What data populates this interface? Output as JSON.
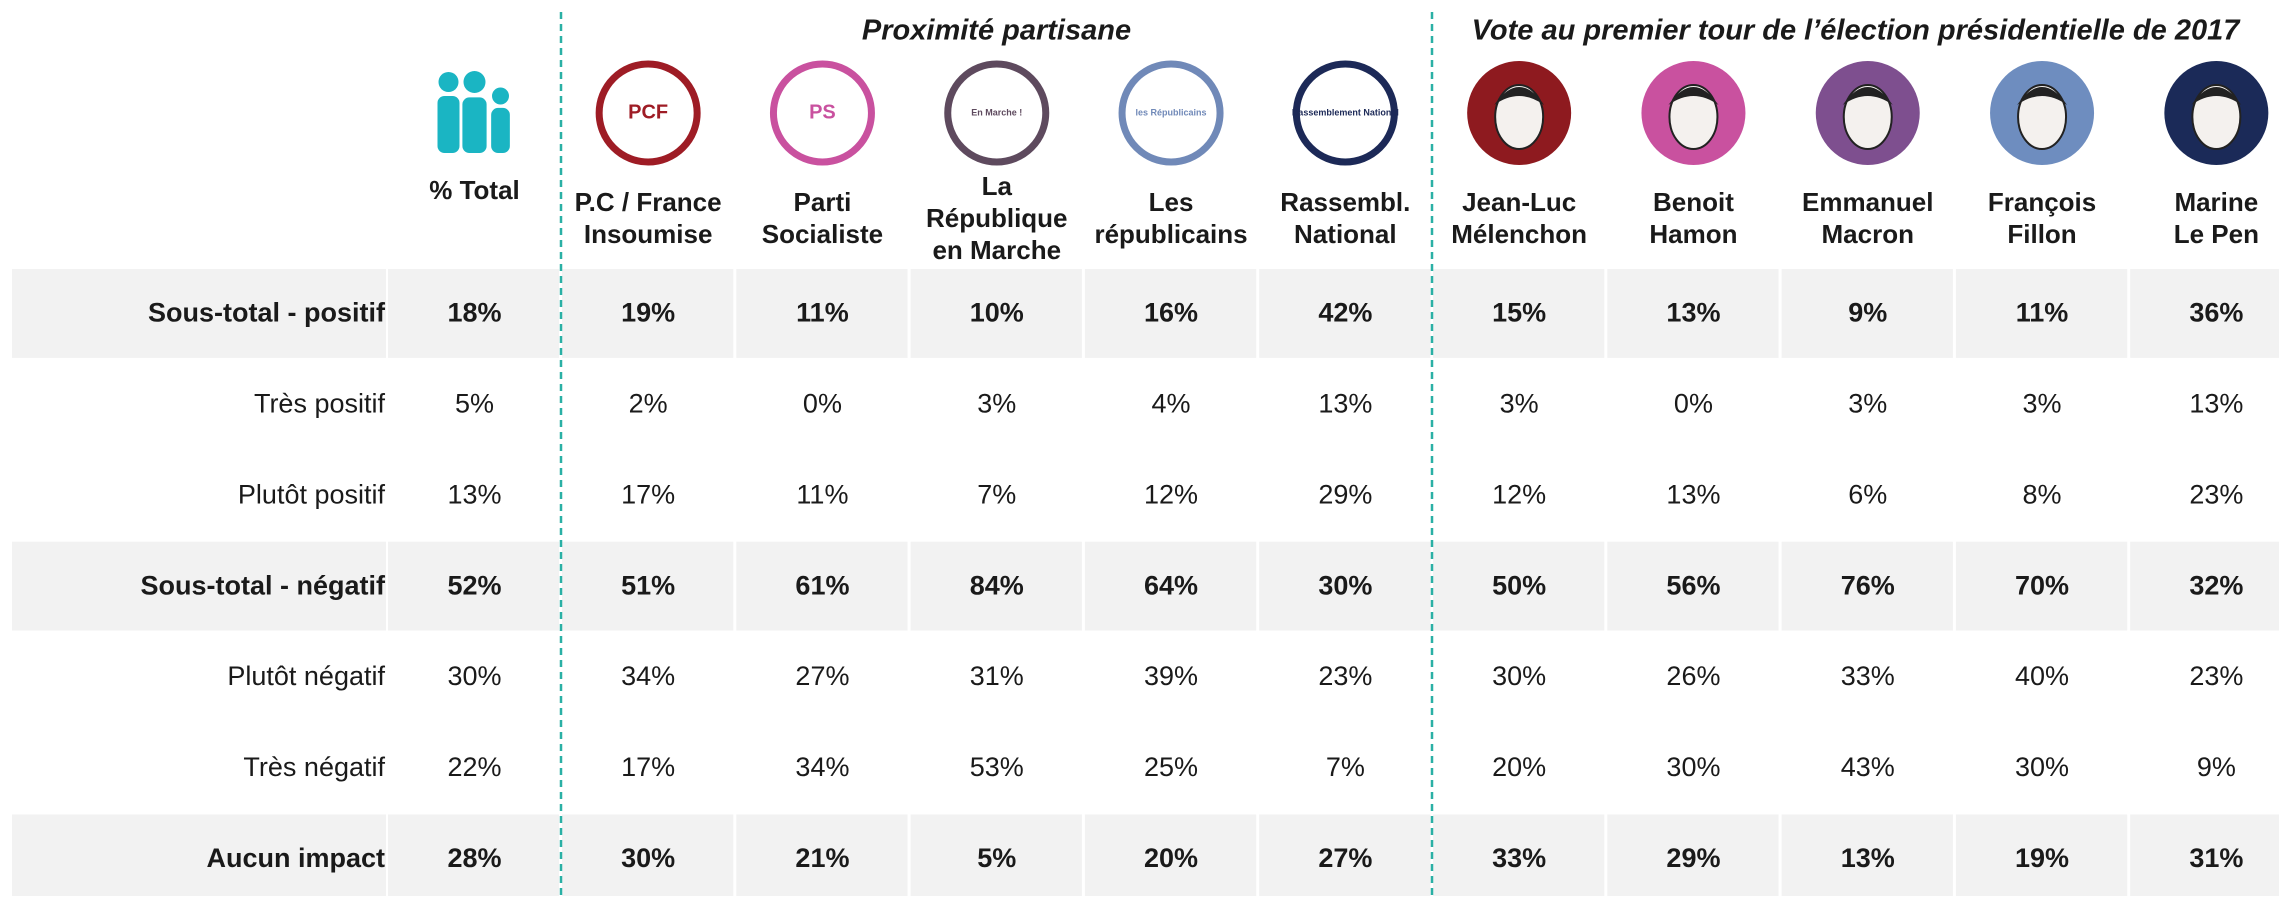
{
  "group_headers": [
    {
      "label": "Proximité partisane"
    },
    {
      "label": "Vote au premier tour de l’élection présidentielle de 2017"
    }
  ],
  "total_header": "% Total",
  "total_color": "#1ab5c3",
  "columns": [
    {
      "lines": [
        "P.C / France",
        "Insoumise"
      ],
      "kind": "logo",
      "logo_text": "PCF",
      "color": "#9e1c25"
    },
    {
      "lines": [
        "Parti",
        "Socialiste"
      ],
      "kind": "logo",
      "logo_text": "PS",
      "color": "#c9519f"
    },
    {
      "lines": [
        "La",
        "République",
        "en Marche"
      ],
      "kind": "logo",
      "logo_text": "En Marche !",
      "color": "#5e4a5e"
    },
    {
      "lines": [
        "Les",
        "républicains"
      ],
      "kind": "logo",
      "logo_text": "les Républicains",
      "color": "#7089b8"
    },
    {
      "lines": [
        "Rassembl.",
        "National"
      ],
      "kind": "logo",
      "logo_text": "Rassemblement National",
      "color": "#1c2957"
    },
    {
      "lines": [
        "Jean-Luc",
        "Mélenchon"
      ],
      "kind": "portrait",
      "color": "#8e1a1f"
    },
    {
      "lines": [
        "Benoit",
        "Hamon"
      ],
      "kind": "portrait",
      "color": "#c9519f"
    },
    {
      "lines": [
        "Emmanuel",
        "Macron"
      ],
      "kind": "portrait",
      "color": "#7e4f8f"
    },
    {
      "lines": [
        "François",
        "Fillon"
      ],
      "kind": "portrait",
      "color": "#6e8dbf"
    },
    {
      "lines": [
        "Marine",
        "Le Pen"
      ],
      "kind": "portrait",
      "color": "#1b2a58"
    }
  ],
  "rows": [
    {
      "label": "Sous-total - positif",
      "bold": true,
      "total": "18%",
      "values": [
        "19%",
        "11%",
        "10%",
        "16%",
        "42%",
        "15%",
        "13%",
        "9%",
        "11%",
        "36%"
      ]
    },
    {
      "label": "Très positif",
      "bold": false,
      "total": "5%",
      "values": [
        "2%",
        "0%",
        "3%",
        "4%",
        "13%",
        "3%",
        "0%",
        "3%",
        "3%",
        "13%"
      ]
    },
    {
      "label": "Plutôt positif",
      "bold": false,
      "total": "13%",
      "values": [
        "17%",
        "11%",
        "7%",
        "12%",
        "29%",
        "12%",
        "13%",
        "6%",
        "8%",
        "23%"
      ]
    },
    {
      "label": "Sous-total - négatif",
      "bold": true,
      "total": "52%",
      "values": [
        "51%",
        "61%",
        "84%",
        "64%",
        "30%",
        "50%",
        "56%",
        "76%",
        "70%",
        "32%"
      ]
    },
    {
      "label": "Plutôt négatif",
      "bold": false,
      "total": "30%",
      "values": [
        "34%",
        "27%",
        "31%",
        "39%",
        "23%",
        "30%",
        "26%",
        "33%",
        "40%",
        "23%"
      ]
    },
    {
      "label": "Très négatif",
      "bold": false,
      "total": "22%",
      "values": [
        "17%",
        "34%",
        "53%",
        "25%",
        "7%",
        "20%",
        "30%",
        "43%",
        "30%",
        "9%"
      ]
    },
    {
      "label": "Aucun impact",
      "bold": true,
      "total": "28%",
      "values": [
        "30%",
        "21%",
        "5%",
        "20%",
        "27%",
        "33%",
        "29%",
        "13%",
        "19%",
        "31%"
      ]
    }
  ]
}
